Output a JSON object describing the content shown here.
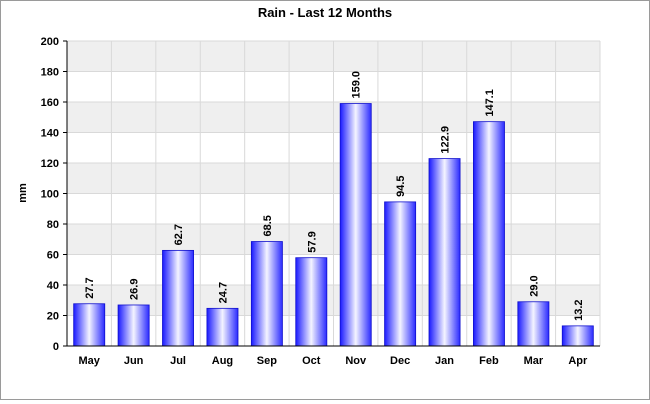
{
  "chart_data": {
    "type": "bar",
    "title": "Rain - Last 12 Months",
    "xlabel": "",
    "ylabel": "mm",
    "ylim": [
      0,
      200
    ],
    "yticks": [
      0,
      20,
      40,
      60,
      80,
      100,
      120,
      140,
      160,
      180,
      200
    ],
    "grid": true,
    "categories": [
      "May",
      "Jun",
      "Jul",
      "Aug",
      "Sep",
      "Oct",
      "Nov",
      "Dec",
      "Jan",
      "Feb",
      "Mar",
      "Apr"
    ],
    "values": [
      27.7,
      26.9,
      62.7,
      24.7,
      68.5,
      57.9,
      159.0,
      94.5,
      122.9,
      147.1,
      29.0,
      13.2
    ],
    "data_labels": [
      "27.7",
      "26.9",
      "62.7",
      "24.7",
      "68.5",
      "57.9",
      "159.0",
      "94.5",
      "122.9",
      "147.1",
      "29.0",
      "13.2"
    ],
    "colors": {
      "bar_edge": "#1a1aff",
      "bar_center": "#f4f4ff",
      "bar_side": "#2a2aff",
      "band": "#efefef",
      "grid": "#d9d9d9"
    }
  }
}
